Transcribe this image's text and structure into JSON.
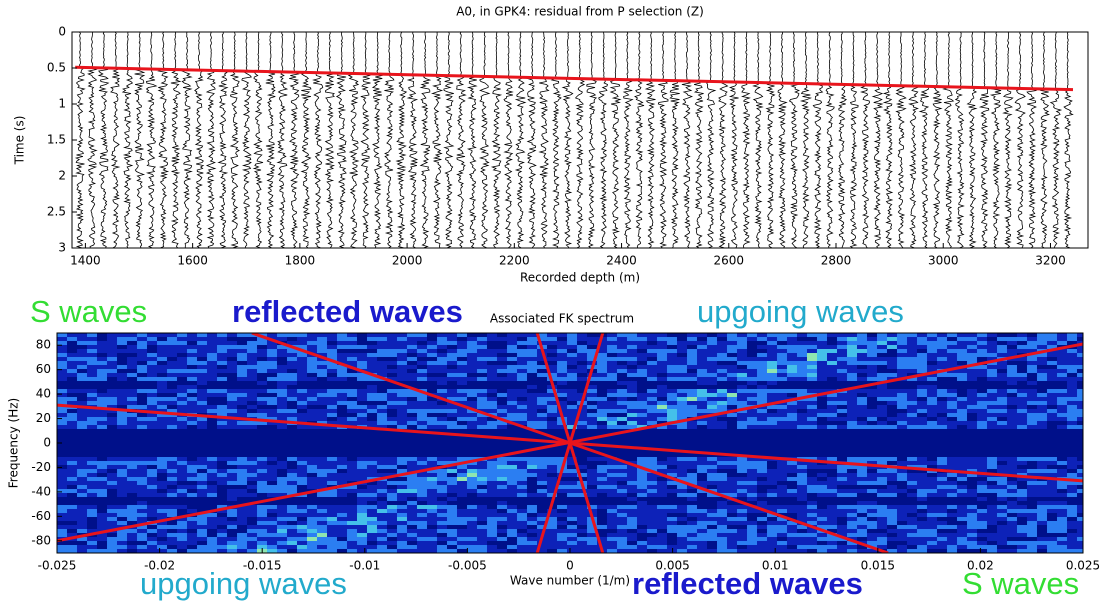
{
  "chart_data": [
    {
      "type": "line",
      "title": "A0, in GPK4: residual from P selection (Z)",
      "x_label": "Recorded depth (m)",
      "y_label": "Time (s)",
      "xlim": [
        1375,
        3270
      ],
      "xticks": [
        1400,
        1600,
        1800,
        2000,
        2200,
        2400,
        2600,
        2800,
        3000,
        3200
      ],
      "ylim": [
        3,
        0
      ],
      "yticks": [
        0,
        0.5,
        1,
        1.5,
        2,
        2.5,
        3
      ],
      "series": [
        {
          "color": "#e8141c",
          "x": [
            1381,
            3242
          ],
          "values": [
            0.49,
            0.8
          ]
        }
      ]
    },
    {
      "type": "line",
      "title": "Associated FK spectrum",
      "x_label": "Wave number (1/m)",
      "y_label": "Frequency (Hz)",
      "xlim": [
        -0.025,
        0.025
      ],
      "xticks": [
        -0.025,
        -0.02,
        -0.015,
        -0.01,
        -0.005,
        0,
        0.005,
        0.01,
        0.015,
        0.02,
        0.025
      ],
      "ylim": [
        -90,
        90
      ],
      "yticks": [
        -80,
        -60,
        -40,
        -20,
        0,
        20,
        40,
        60,
        80
      ],
      "series": [
        {
          "color": "#e8141c",
          "x": [
            -0.0155,
            0.0155
          ],
          "values": [
            90,
            -90
          ]
        },
        {
          "color": "#e8141c",
          "x": [
            -0.025,
            0.025
          ],
          "values": [
            31,
            -31
          ]
        },
        {
          "color": "#e8141c",
          "x": [
            -0.025,
            0.025
          ],
          "values": [
            -80,
            81
          ]
        },
        {
          "color": "#e8141c",
          "x": [
            -0.0016,
            0.0016
          ],
          "values": [
            90,
            -90
          ]
        },
        {
          "color": "#e8141c",
          "x": [
            0.0016,
            -0.0016
          ],
          "values": [
            90,
            -90
          ]
        }
      ],
      "annotations": [
        {
          "text": "S waves",
          "color": "#33dd33"
        },
        {
          "text": "reflected waves",
          "color": "#1a1acc"
        },
        {
          "text": "upgoing waves",
          "color": "#22aacc"
        },
        {
          "text": "upgoing waves",
          "color": "#22aacc"
        },
        {
          "text": "reflected waves",
          "color": "#1a1acc"
        },
        {
          "text": "S waves",
          "color": "#33dd33"
        }
      ]
    }
  ]
}
